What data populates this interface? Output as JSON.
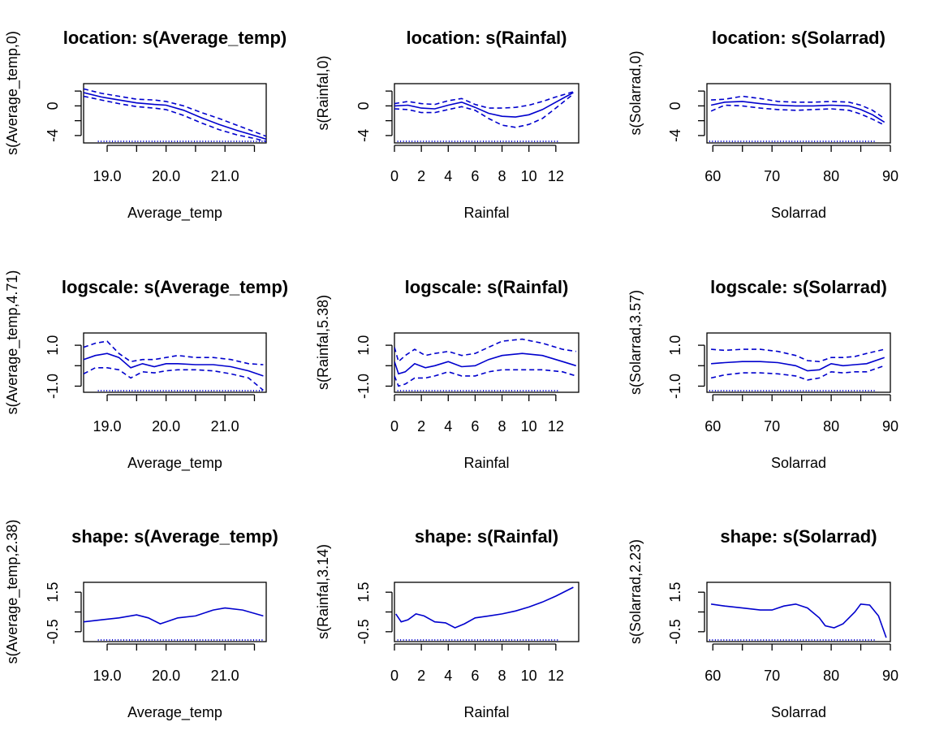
{
  "colors": {
    "curve": "#0000cd",
    "axis": "#000000",
    "background": "#ffffff"
  },
  "chart_data": [
    {
      "type": "line",
      "title": "location: s(Average_temp)",
      "xlabel": "Average_temp",
      "ylabel": "s(Average_temp,0)",
      "xlim": [
        18.6,
        21.7
      ],
      "ylim": [
        -5,
        3
      ],
      "xticks": [
        19.0,
        19.5,
        20.0,
        20.5,
        21.0,
        21.5
      ],
      "xticklabels": [
        "19.0",
        "",
        "20.0",
        "",
        "21.0",
        ""
      ],
      "yticks": [
        -4,
        -2,
        0,
        2
      ],
      "yticklabels": [
        "-4",
        "",
        "0",
        ""
      ],
      "series": [
        {
          "style": "solid",
          "x": [
            18.6,
            18.9,
            19.2,
            19.5,
            19.8,
            20.0,
            20.3,
            20.6,
            20.9,
            21.2,
            21.5,
            21.7
          ],
          "y": [
            1.8,
            1.2,
            0.8,
            0.4,
            0.2,
            0.1,
            -0.6,
            -1.6,
            -2.5,
            -3.3,
            -4.0,
            -4.5
          ]
        },
        {
          "style": "dashed",
          "x": [
            18.6,
            18.9,
            19.2,
            19.5,
            19.8,
            20.0,
            20.3,
            20.6,
            20.9,
            21.2,
            21.5,
            21.7
          ],
          "y": [
            2.3,
            1.7,
            1.3,
            0.9,
            0.8,
            0.6,
            0.0,
            -0.9,
            -1.7,
            -2.6,
            -3.5,
            -4.1
          ]
        },
        {
          "style": "dashed",
          "x": [
            18.6,
            18.9,
            19.2,
            19.5,
            19.8,
            20.0,
            20.3,
            20.6,
            20.9,
            21.2,
            21.5,
            21.7
          ],
          "y": [
            1.3,
            0.8,
            0.3,
            -0.1,
            -0.3,
            -0.5,
            -1.3,
            -2.3,
            -3.2,
            -3.9,
            -4.4,
            -4.8
          ]
        }
      ]
    },
    {
      "type": "line",
      "title": "location: s(Rainfal)",
      "xlabel": "Rainfal",
      "ylabel": "s(Rainfal,0)",
      "xlim": [
        0,
        13.7
      ],
      "ylim": [
        -5,
        3
      ],
      "xticks": [
        0,
        2,
        4,
        6,
        8,
        10,
        12
      ],
      "xticklabels": [
        "0",
        "2",
        "4",
        "6",
        "8",
        "10",
        "12"
      ],
      "yticks": [
        -4,
        -2,
        0,
        2
      ],
      "yticklabels": [
        "-4",
        "",
        "0",
        ""
      ],
      "series": [
        {
          "style": "solid",
          "x": [
            0,
            1,
            2,
            3,
            4,
            5,
            6,
            7,
            8,
            9,
            10,
            11,
            12,
            13.3
          ],
          "y": [
            0.0,
            0.1,
            -0.3,
            -0.4,
            0.1,
            0.5,
            -0.2,
            -1.0,
            -1.4,
            -1.5,
            -1.2,
            -0.5,
            0.5,
            1.8
          ]
        },
        {
          "style": "dashed",
          "x": [
            0,
            1,
            2,
            3,
            4,
            5,
            6,
            7,
            8,
            9,
            10,
            11,
            12,
            13.3
          ],
          "y": [
            0.3,
            0.6,
            0.3,
            0.2,
            0.7,
            1.0,
            0.2,
            -0.3,
            -0.3,
            -0.2,
            0.1,
            0.6,
            1.2,
            1.9
          ]
        },
        {
          "style": "dashed",
          "x": [
            0,
            1,
            2,
            3,
            4,
            5,
            6,
            7,
            8,
            9,
            10,
            11,
            12,
            13.3
          ],
          "y": [
            -0.4,
            -0.5,
            -0.9,
            -0.9,
            -0.5,
            -0.1,
            -0.6,
            -1.7,
            -2.6,
            -2.9,
            -2.5,
            -1.7,
            -0.3,
            1.6
          ]
        }
      ]
    },
    {
      "type": "line",
      "title": "location: s(Solarrad)",
      "xlabel": "Solarrad",
      "ylabel": "s(Solarrad,0)",
      "xlim": [
        59,
        90
      ],
      "ylim": [
        -5,
        3
      ],
      "xticks": [
        60,
        65,
        70,
        75,
        80,
        85,
        90
      ],
      "xticklabels": [
        "60",
        "",
        "70",
        "",
        "80",
        "",
        "90"
      ],
      "yticks": [
        -4,
        -2,
        0,
        2
      ],
      "yticklabels": [
        "-4",
        "",
        "0",
        ""
      ],
      "series": [
        {
          "style": "solid",
          "x": [
            59.7,
            62,
            65,
            68,
            71,
            74,
            77,
            80,
            83,
            85,
            87,
            89
          ],
          "y": [
            0.1,
            0.5,
            0.6,
            0.3,
            0.1,
            0.0,
            0.0,
            0.1,
            0.0,
            -0.5,
            -1.2,
            -2.2
          ]
        },
        {
          "style": "dashed",
          "x": [
            59.7,
            62,
            65,
            68,
            71,
            74,
            77,
            80,
            83,
            85,
            87,
            89
          ],
          "y": [
            0.8,
            0.9,
            1.3,
            1.0,
            0.6,
            0.5,
            0.5,
            0.6,
            0.5,
            0.1,
            -0.6,
            -1.7
          ]
        },
        {
          "style": "dashed",
          "x": [
            59.7,
            62,
            65,
            68,
            71,
            74,
            77,
            80,
            83,
            85,
            87,
            89
          ],
          "y": [
            -0.7,
            0.1,
            0.0,
            -0.3,
            -0.5,
            -0.6,
            -0.5,
            -0.4,
            -0.6,
            -1.1,
            -1.8,
            -2.6
          ]
        }
      ]
    },
    {
      "type": "line",
      "title": "logscale: s(Average_temp)",
      "xlabel": "Average_temp",
      "ylabel": "s(Average_temp,4.71)",
      "xlim": [
        18.6,
        21.7
      ],
      "ylim": [
        -1.3,
        1.6
      ],
      "xticks": [
        19.0,
        19.5,
        20.0,
        20.5,
        21.0,
        21.5
      ],
      "xticklabels": [
        "19.0",
        "",
        "20.0",
        "",
        "21.0",
        ""
      ],
      "yticks": [
        -1.0,
        0.0,
        1.0
      ],
      "yticklabels": [
        "-1.0",
        "",
        "1.0"
      ],
      "series": [
        {
          "style": "solid",
          "x": [
            18.6,
            18.8,
            19.0,
            19.2,
            19.4,
            19.6,
            19.8,
            20.0,
            20.2,
            20.5,
            20.8,
            21.1,
            21.4,
            21.65
          ],
          "y": [
            0.3,
            0.5,
            0.6,
            0.4,
            -0.1,
            0.1,
            -0.05,
            0.1,
            0.1,
            0.05,
            0.05,
            -0.05,
            -0.25,
            -0.5
          ]
        },
        {
          "style": "dashed",
          "x": [
            18.6,
            18.8,
            19.0,
            19.2,
            19.4,
            19.6,
            19.8,
            20.0,
            20.2,
            20.5,
            20.8,
            21.1,
            21.4,
            21.65
          ],
          "y": [
            0.9,
            1.1,
            1.2,
            0.6,
            0.2,
            0.3,
            0.3,
            0.4,
            0.5,
            0.4,
            0.4,
            0.3,
            0.1,
            0.05
          ]
        },
        {
          "style": "dashed",
          "x": [
            18.6,
            18.8,
            19.0,
            19.2,
            19.4,
            19.6,
            19.8,
            20.0,
            20.2,
            20.5,
            20.8,
            21.1,
            21.4,
            21.65
          ],
          "y": [
            -0.4,
            -0.1,
            -0.1,
            -0.2,
            -0.6,
            -0.3,
            -0.35,
            -0.25,
            -0.2,
            -0.2,
            -0.25,
            -0.4,
            -0.6,
            -1.2
          ]
        }
      ]
    },
    {
      "type": "line",
      "title": "logscale: s(Rainfal)",
      "xlabel": "Rainfal",
      "ylabel": "s(Rainfal,5.38)",
      "xlim": [
        0,
        13.7
      ],
      "ylim": [
        -1.3,
        1.6
      ],
      "xticks": [
        0,
        2,
        4,
        6,
        8,
        10,
        12
      ],
      "xticklabels": [
        "0",
        "2",
        "4",
        "6",
        "8",
        "10",
        "12"
      ],
      "yticks": [
        -1.0,
        0.0,
        1.0
      ],
      "yticklabels": [
        "-1.0",
        "",
        "1.0"
      ],
      "series": [
        {
          "style": "solid",
          "x": [
            0,
            0.3,
            0.8,
            1.5,
            2.3,
            3,
            4,
            5,
            6,
            7,
            8,
            9.5,
            11,
            12.5,
            13.5
          ],
          "y": [
            0.2,
            -0.4,
            -0.3,
            0.1,
            -0.1,
            0.0,
            0.2,
            -0.05,
            0.0,
            0.3,
            0.5,
            0.6,
            0.5,
            0.2,
            0.0
          ]
        },
        {
          "style": "dashed",
          "x": [
            0,
            0.3,
            0.8,
            1.5,
            2.3,
            3,
            4,
            5,
            6,
            7,
            8,
            9.5,
            11,
            12.5,
            13.5
          ],
          "y": [
            0.9,
            0.2,
            0.5,
            0.8,
            0.5,
            0.6,
            0.7,
            0.5,
            0.6,
            0.9,
            1.2,
            1.3,
            1.1,
            0.8,
            0.7
          ]
        },
        {
          "style": "dashed",
          "x": [
            0,
            0.3,
            0.8,
            1.5,
            2.3,
            3,
            4,
            5,
            6,
            7,
            8,
            9.5,
            11,
            12.5,
            13.5
          ],
          "y": [
            -0.5,
            -1.0,
            -0.9,
            -0.6,
            -0.6,
            -0.5,
            -0.3,
            -0.5,
            -0.5,
            -0.3,
            -0.2,
            -0.2,
            -0.2,
            -0.3,
            -0.5
          ]
        }
      ]
    },
    {
      "type": "line",
      "title": "logscale: s(Solarrad)",
      "xlabel": "Solarrad",
      "ylabel": "s(Solarrad,3.57)",
      "xlim": [
        59,
        90
      ],
      "ylim": [
        -1.3,
        1.6
      ],
      "xticks": [
        60,
        65,
        70,
        75,
        80,
        85,
        90
      ],
      "xticklabels": [
        "60",
        "",
        "70",
        "",
        "80",
        "",
        "90"
      ],
      "yticks": [
        -1.0,
        0.0,
        1.0
      ],
      "yticklabels": [
        "-1.0",
        "",
        "1.0"
      ],
      "series": [
        {
          "style": "solid",
          "x": [
            59.7,
            62,
            65,
            68,
            71,
            74,
            76,
            78,
            80,
            82,
            84,
            86,
            89
          ],
          "y": [
            0.1,
            0.15,
            0.2,
            0.2,
            0.15,
            0.0,
            -0.25,
            -0.2,
            0.1,
            0.0,
            0.05,
            0.1,
            0.4
          ]
        },
        {
          "style": "dashed",
          "x": [
            59.7,
            62,
            65,
            68,
            71,
            74,
            76,
            78,
            80,
            82,
            84,
            86,
            89
          ],
          "y": [
            0.8,
            0.75,
            0.8,
            0.8,
            0.7,
            0.5,
            0.25,
            0.2,
            0.4,
            0.4,
            0.45,
            0.6,
            0.8
          ]
        },
        {
          "style": "dashed",
          "x": [
            59.7,
            62,
            65,
            68,
            71,
            74,
            76,
            78,
            80,
            82,
            84,
            86,
            89
          ],
          "y": [
            -0.6,
            -0.45,
            -0.35,
            -0.35,
            -0.4,
            -0.5,
            -0.7,
            -0.6,
            -0.3,
            -0.35,
            -0.3,
            -0.3,
            0.0
          ]
        }
      ]
    },
    {
      "type": "line",
      "title": "shape: s(Average_temp)",
      "xlabel": "Average_temp",
      "ylabel": "s(Average_temp,2.38)",
      "xlim": [
        18.6,
        21.7
      ],
      "ylim": [
        -1.0,
        2.0
      ],
      "xticks": [
        19.0,
        19.5,
        20.0,
        20.5,
        21.0,
        21.5
      ],
      "xticklabels": [
        "19.0",
        "",
        "20.0",
        "",
        "21.0",
        ""
      ],
      "yticks": [
        -0.5,
        0.5,
        1.5
      ],
      "yticklabels": [
        "-0.5",
        "",
        "1.5"
      ],
      "series": [
        {
          "style": "solid",
          "x": [
            18.6,
            18.9,
            19.2,
            19.5,
            19.7,
            19.9,
            20.0,
            20.2,
            20.5,
            20.8,
            21.0,
            21.3,
            21.65
          ],
          "y": [
            0.0,
            0.1,
            0.2,
            0.35,
            0.2,
            -0.1,
            0.0,
            0.2,
            0.3,
            0.6,
            0.7,
            0.6,
            0.3
          ]
        }
      ]
    },
    {
      "type": "line",
      "title": "shape: s(Rainfal)",
      "xlabel": "Rainfal",
      "ylabel": "s(Rainfal,3.14)",
      "xlim": [
        0,
        13.7
      ],
      "ylim": [
        -1.0,
        2.0
      ],
      "xticks": [
        0,
        2,
        4,
        6,
        8,
        10,
        12
      ],
      "xticklabels": [
        "0",
        "2",
        "4",
        "6",
        "8",
        "10",
        "12"
      ],
      "yticks": [
        -0.5,
        0.5,
        1.5
      ],
      "yticklabels": [
        "-0.5",
        "",
        "1.5"
      ],
      "series": [
        {
          "style": "solid",
          "x": [
            0.1,
            0.5,
            1,
            1.6,
            2.2,
            3,
            3.8,
            4.5,
            5.2,
            6,
            7,
            8,
            9,
            10,
            11,
            12,
            13.3
          ],
          "y": [
            0.4,
            0.0,
            0.1,
            0.4,
            0.3,
            0.0,
            -0.05,
            -0.3,
            -0.1,
            0.2,
            0.3,
            0.4,
            0.55,
            0.75,
            1.0,
            1.3,
            1.75
          ]
        }
      ]
    },
    {
      "type": "line",
      "title": "shape: s(Solarrad)",
      "xlabel": "Solarrad",
      "ylabel": "s(Solarrad,2.23)",
      "xlim": [
        59,
        90
      ],
      "ylim": [
        -1.0,
        2.0
      ],
      "xticks": [
        60,
        65,
        70,
        75,
        80,
        85,
        90
      ],
      "xticklabels": [
        "60",
        "",
        "70",
        "",
        "80",
        "",
        "90"
      ],
      "yticks": [
        -0.5,
        0.5,
        1.5
      ],
      "yticklabels": [
        "-0.5",
        "",
        "1.5"
      ],
      "series": [
        {
          "style": "solid",
          "x": [
            59.7,
            62,
            65,
            68,
            70,
            72,
            74,
            76,
            78,
            79,
            80.5,
            82,
            84,
            85,
            86.5,
            88,
            89.3
          ],
          "y": [
            0.9,
            0.8,
            0.7,
            0.6,
            0.6,
            0.8,
            0.9,
            0.7,
            0.2,
            -0.2,
            -0.3,
            -0.1,
            0.5,
            0.9,
            0.85,
            0.3,
            -0.8
          ]
        }
      ]
    }
  ]
}
